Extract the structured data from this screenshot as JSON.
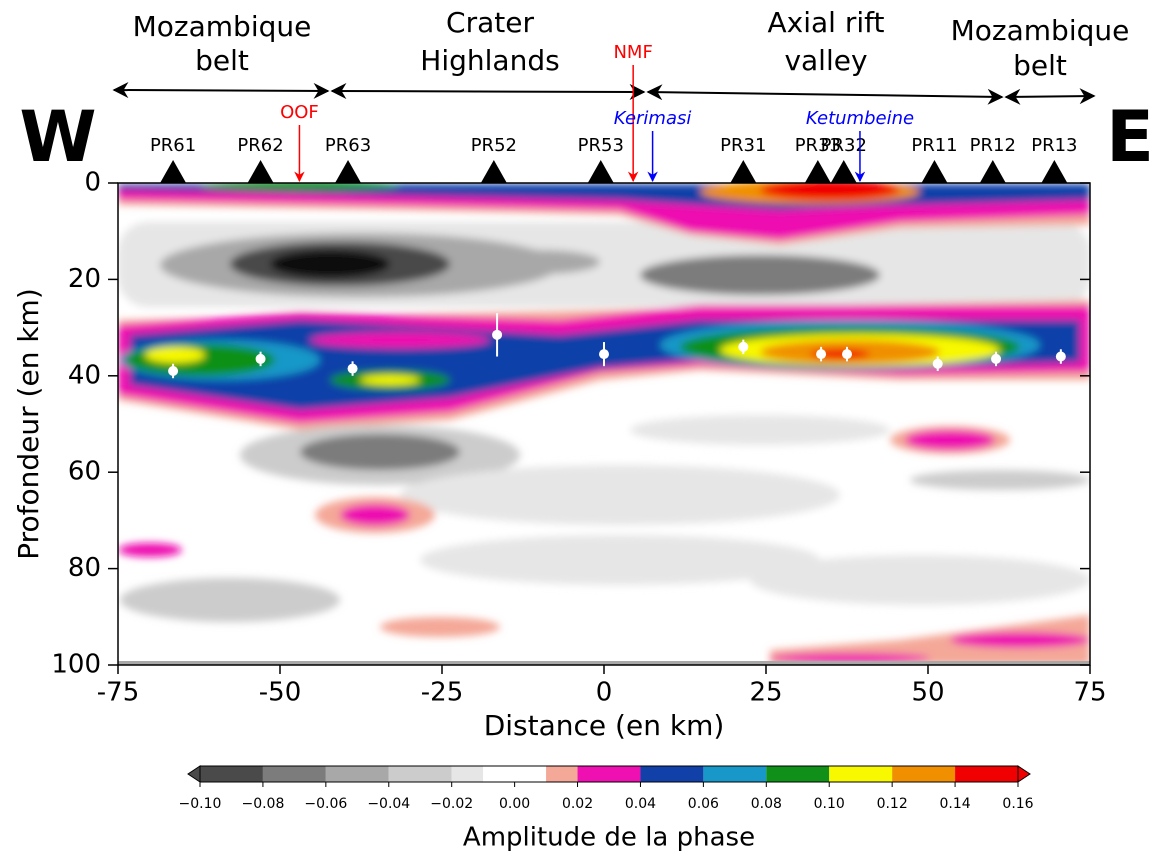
{
  "chart_data": {
    "type": "scatter",
    "side_labels": [
      "W",
      "E"
    ],
    "regions": [
      {
        "lines": [
          "Mozambique",
          "belt"
        ]
      },
      {
        "lines": [
          "Crater",
          "Highlands"
        ]
      },
      {
        "lines": [
          "Axial rift",
          "valley"
        ]
      },
      {
        "lines": [
          "Mozambique",
          "belt"
        ]
      }
    ],
    "stations": {
      "names": [
        "PR61",
        "PR62",
        "PR63",
        "PR52",
        "PR53",
        "PR31",
        "PR33",
        "PR32",
        "PR11",
        "PR12",
        "PR13"
      ],
      "x": [
        -66.5,
        -53,
        -39.5,
        -17,
        -0.5,
        21.5,
        33,
        37,
        51,
        60,
        69.5
      ]
    },
    "faults": {
      "labels": [
        "OOF",
        "NMF"
      ],
      "x": [
        -47,
        4.5
      ],
      "color": "#ff0000"
    },
    "volcanoes": {
      "labels": [
        "Kerimasi",
        "Ketumbeine"
      ],
      "x": [
        7.5,
        39.5
      ],
      "color": "#0000ff"
    },
    "x": [
      -66.5,
      -53,
      -38.8,
      -16.5,
      0,
      21.5,
      33.5,
      37.5,
      51.5,
      60.5,
      70.5
    ],
    "values": [
      39,
      36.5,
      38.5,
      31.5,
      35.5,
      34,
      35.5,
      35.5,
      37.5,
      36.5,
      36
    ],
    "errors": [
      1.5,
      1.5,
      1.5,
      4.5,
      2.5,
      1.5,
      1.5,
      1.5,
      1.5,
      1.5,
      1.5
    ],
    "color": "#ffffff",
    "xlabel": "Distance (en km)",
    "ylabel": "Profondeur (en km)",
    "xlim": [
      -75,
      75
    ],
    "ylim": [
      0,
      100
    ],
    "y_inverted": true,
    "xticks": [
      -75,
      -50,
      -25,
      0,
      25,
      50,
      75
    ],
    "yticks": [
      0,
      20,
      40,
      60,
      80,
      100
    ],
    "colorbar": {
      "label": "Amplitude de la phase",
      "levels": [
        -0.1,
        -0.08,
        -0.06,
        -0.04,
        -0.02,
        -0.01,
        0.01,
        0.02,
        0.04,
        0.06,
        0.08,
        0.1,
        0.12,
        0.14,
        0.16
      ],
      "colors": [
        "#4a4a4a",
        "#7c7c7c",
        "#a8a8a8",
        "#cccccc",
        "#e6e6e6",
        "#ffffff",
        "#f4a898",
        "#ee10b0",
        "#1040a8",
        "#1898c8",
        "#109018",
        "#f8f800",
        "#f09000",
        "#f00000"
      ],
      "ticks": [
        {
          "value": -0.1,
          "label": "−0.10"
        },
        {
          "value": -0.08,
          "label": "−0.08"
        },
        {
          "value": -0.06,
          "label": "−0.06"
        },
        {
          "value": -0.04,
          "label": "−0.04"
        },
        {
          "value": -0.02,
          "label": "−0.02"
        },
        {
          "value": 0,
          "label": "0.00"
        },
        {
          "value": 0.02,
          "label": "0.02"
        },
        {
          "value": 0.04,
          "label": "0.04"
        },
        {
          "value": 0.06,
          "label": "0.06"
        },
        {
          "value": 0.08,
          "label": "0.08"
        },
        {
          "value": 0.1,
          "label": "0.10"
        },
        {
          "value": 0.12,
          "label": "0.12"
        },
        {
          "value": 0.14,
          "label": "0.14"
        },
        {
          "value": 0.16,
          "label": "0.16"
        }
      ]
    }
  }
}
